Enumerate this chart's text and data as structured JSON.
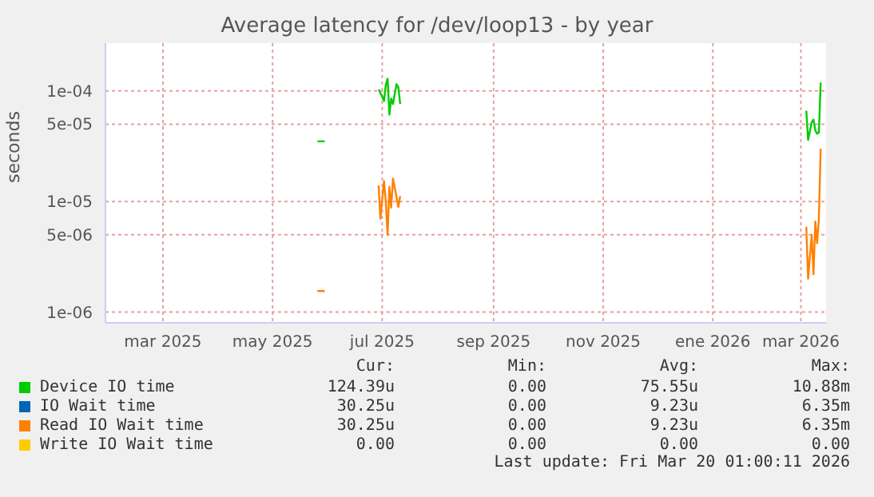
{
  "chart_data": {
    "type": "line",
    "title": "Average latency for /dev/loop13 - by year",
    "ylabel": "seconds",
    "x": [
      "2025-06-10",
      "2025-06-14",
      "2025-06-20",
      "2025-07-14",
      "2025-07-15",
      "2025-07-17",
      "2025-07-18",
      "2025-07-19",
      "2025-07-20",
      "2025-07-21",
      "2025-07-22",
      "2025-07-24",
      "2025-07-25",
      "2025-07-26",
      "2025-08-10",
      "2026-03-09",
      "2026-03-10",
      "2026-03-12",
      "2026-03-13",
      "2026-03-14",
      "2026-03-15",
      "2026-03-16",
      "2026-03-17"
    ],
    "series": [
      {
        "name": "Device IO time",
        "color": "#00cc00",
        "values": [
          3.5e-05,
          3.5e-05,
          null,
          0.000103,
          9.6e-05,
          8.1e-05,
          0.000113,
          0.000129,
          6.1e-05,
          8.5e-05,
          7.6e-05,
          0.000115,
          0.000107,
          7.6e-05,
          null,
          6.6e-05,
          3.6e-05,
          5.2e-05,
          5.5e-05,
          4.4e-05,
          4.1e-05,
          4.2e-05,
          0.000119
        ]
      },
      {
        "name": "IO Wait time",
        "color": "#0066b3",
        "values": [
          null,
          null,
          null,
          null,
          null,
          null,
          null,
          null,
          null,
          null,
          null,
          null,
          null,
          null,
          null,
          null,
          null,
          null,
          null,
          null,
          null,
          null,
          null
        ]
      },
      {
        "name": "Read IO Wait time",
        "color": "#ff8000",
        "values": [
          1.55e-06,
          1.55e-06,
          null,
          1.4e-05,
          7e-06,
          1.53e-05,
          9.8e-06,
          5e-06,
          1.36e-05,
          8.8e-06,
          1.61e-05,
          1.09e-05,
          8.9e-06,
          1.12e-05,
          null,
          5.9e-06,
          2e-06,
          5e-06,
          2.2e-06,
          6.6e-06,
          4.2e-06,
          7e-06,
          3e-05
        ]
      },
      {
        "name": "Write IO Wait time",
        "color": "#ffcc00",
        "values": [
          null,
          null,
          null,
          null,
          null,
          null,
          null,
          null,
          null,
          null,
          null,
          null,
          null,
          null,
          null,
          null,
          null,
          null,
          null,
          null,
          null,
          null,
          null
        ]
      }
    ],
    "xlim": [
      "2025-02-12",
      "2026-03-20"
    ],
    "xticks": [
      {
        "value": "2025-03-16",
        "label": "mar 2025"
      },
      {
        "value": "2025-05-16",
        "label": "may 2025"
      },
      {
        "value": "2025-07-16",
        "label": "jul 2025"
      },
      {
        "value": "2025-09-16",
        "label": "sep 2025"
      },
      {
        "value": "2025-11-16",
        "label": "nov 2025"
      },
      {
        "value": "2026-01-16",
        "label": "ene 2026"
      },
      {
        "value": "2026-03-06",
        "label": "mar 2026"
      }
    ],
    "ylim": [
      8e-07,
      0.00027
    ],
    "log": true,
    "yticks": [
      {
        "value": 1e-06,
        "label": "1e-06"
      },
      {
        "value": 5e-06,
        "label": "5e-06"
      },
      {
        "value": 1e-05,
        "label": "1e-05"
      },
      {
        "value": 5e-05,
        "label": "5e-05"
      },
      {
        "value": 0.0001,
        "label": "1e-04"
      }
    ],
    "grid": true,
    "legend": "bottom",
    "annotations": [
      "Cur:",
      "Min:",
      "Avg:",
      "Max:",
      "124.39u",
      "0.00",
      "75.55u",
      "10.88m",
      "30.25u",
      "0.00",
      "9.23u",
      "6.35m",
      "30.25u",
      "0.00",
      "9.23u",
      "6.35m",
      "0.00",
      "0.00",
      "0.00",
      "0.00",
      "Last update: Fri Mar 20 01:00:11 2026"
    ]
  }
}
